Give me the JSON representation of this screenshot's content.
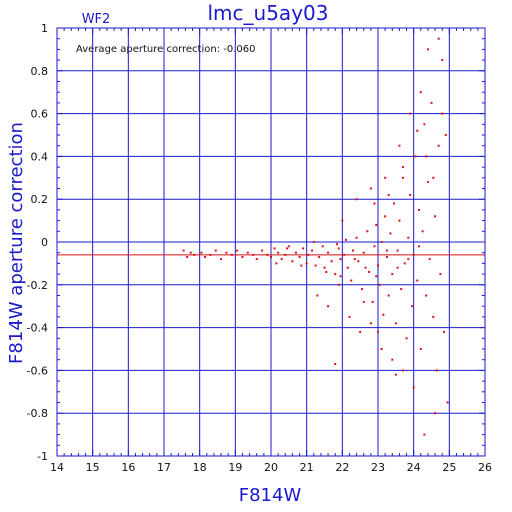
{
  "chart_data": {
    "type": "scatter",
    "title": "lmc_u5ay03",
    "subtitle": "WF2",
    "xlabel": "F814W",
    "ylabel": "F814W aperture correction",
    "annotation": "Average aperture correction:  -0.060",
    "xlim": [
      14,
      26
    ],
    "ylim": [
      -1,
      1
    ],
    "x_ticks": [
      14,
      15,
      16,
      17,
      18,
      19,
      20,
      21,
      22,
      23,
      24,
      25,
      26
    ],
    "y_ticks": [
      -1,
      -0.8,
      -0.6,
      -0.4,
      -0.2,
      0,
      0.2,
      0.4,
      0.6,
      0.8,
      1
    ],
    "x_tick_labels": [
      "14",
      "15",
      "16",
      "17",
      "18",
      "19",
      "20",
      "21",
      "22",
      "23",
      "24",
      "25",
      "26"
    ],
    "y_tick_labels": [
      "-1",
      "-0.8",
      "-0.6",
      "-0.4",
      "-0.2",
      "0",
      "0.2",
      "0.4",
      "0.6",
      "0.8",
      "1"
    ],
    "grid": true,
    "reference_line_y": -0.06,
    "colors": {
      "frame": "#1a1acc",
      "points": "#e01010",
      "reference_line": "#e01010"
    },
    "series": [
      {
        "points": [
          [
            17.55,
            -0.04
          ],
          [
            17.65,
            -0.07
          ],
          [
            17.75,
            -0.05
          ],
          [
            17.85,
            -0.06
          ],
          [
            18.05,
            -0.05
          ],
          [
            18.15,
            -0.07
          ],
          [
            18.3,
            -0.06
          ],
          [
            18.45,
            -0.04
          ],
          [
            18.6,
            -0.08
          ],
          [
            18.75,
            -0.05
          ],
          [
            18.9,
            -0.06
          ],
          [
            19.05,
            -0.04
          ],
          [
            19.2,
            -0.07
          ],
          [
            19.35,
            -0.05
          ],
          [
            19.5,
            -0.06
          ],
          [
            19.6,
            -0.08
          ],
          [
            19.75,
            -0.04
          ],
          [
            19.9,
            -0.06
          ],
          [
            20.0,
            -0.07
          ],
          [
            20.1,
            -0.03
          ],
          [
            20.2,
            -0.05
          ],
          [
            20.3,
            -0.08
          ],
          [
            20.4,
            -0.06
          ],
          [
            20.5,
            -0.02
          ],
          [
            20.6,
            -0.09
          ],
          [
            20.7,
            -0.05
          ],
          [
            20.8,
            -0.07
          ],
          [
            20.9,
            -0.03
          ],
          [
            21.0,
            -0.1
          ],
          [
            21.05,
            -0.06
          ],
          [
            21.15,
            -0.04
          ],
          [
            21.25,
            -0.11
          ],
          [
            21.35,
            -0.07
          ],
          [
            21.45,
            -0.02
          ],
          [
            21.5,
            -0.12
          ],
          [
            21.6,
            -0.05
          ],
          [
            21.7,
            -0.09
          ],
          [
            21.8,
            -0.15
          ],
          [
            21.9,
            -0.03
          ],
          [
            21.95,
            -0.08
          ],
          [
            20.15,
            -0.1
          ],
          [
            20.45,
            -0.03
          ],
          [
            20.85,
            -0.11
          ],
          [
            21.2,
            0.0
          ],
          [
            21.55,
            -0.14
          ],
          [
            21.85,
            -0.01
          ],
          [
            22.05,
            -0.06
          ],
          [
            22.1,
            0.01
          ],
          [
            22.15,
            -0.12
          ],
          [
            22.25,
            -0.18
          ],
          [
            22.3,
            -0.04
          ],
          [
            22.4,
            0.02
          ],
          [
            22.45,
            -0.09
          ],
          [
            22.55,
            -0.22
          ],
          [
            22.6,
            -0.05
          ],
          [
            22.7,
            0.05
          ],
          [
            22.75,
            -0.14
          ],
          [
            22.85,
            -0.28
          ],
          [
            22.9,
            -0.02
          ],
          [
            22.95,
            0.08
          ],
          [
            23.0,
            -0.11
          ],
          [
            23.05,
            -0.2
          ],
          [
            23.1,
            0.0
          ],
          [
            23.15,
            -0.34
          ],
          [
            23.2,
            0.12
          ],
          [
            23.25,
            -0.07
          ],
          [
            23.3,
            -0.25
          ],
          [
            23.35,
            0.04
          ],
          [
            23.4,
            -0.15
          ],
          [
            23.45,
            0.18
          ],
          [
            23.5,
            -0.38
          ],
          [
            23.55,
            -0.04
          ],
          [
            23.6,
            0.1
          ],
          [
            23.65,
            -0.22
          ],
          [
            23.7,
            0.3
          ],
          [
            23.75,
            -0.1
          ],
          [
            23.8,
            -0.45
          ],
          [
            23.85,
            0.02
          ],
          [
            23.9,
            0.22
          ],
          [
            23.95,
            -0.3
          ],
          [
            24.0,
            -0.06
          ],
          [
            24.05,
            0.4
          ],
          [
            24.1,
            -0.18
          ],
          [
            24.15,
            0.15
          ],
          [
            24.2,
            -0.5
          ],
          [
            24.25,
            0.05
          ],
          [
            24.3,
            0.55
          ],
          [
            24.35,
            -0.25
          ],
          [
            24.4,
            0.28
          ],
          [
            24.45,
            -0.08
          ],
          [
            24.5,
            0.65
          ],
          [
            24.55,
            -0.35
          ],
          [
            24.6,
            0.12
          ],
          [
            24.65,
            -0.6
          ],
          [
            24.7,
            0.45
          ],
          [
            24.75,
            -0.15
          ],
          [
            24.8,
            0.85
          ],
          [
            24.85,
            -0.42
          ],
          [
            24.9,
            0.5
          ],
          [
            24.95,
            -0.75
          ],
          [
            21.3,
            -0.25
          ],
          [
            21.6,
            -0.3
          ],
          [
            21.9,
            -0.2
          ],
          [
            22.2,
            -0.35
          ],
          [
            22.5,
            -0.42
          ],
          [
            22.8,
            -0.38
          ],
          [
            23.1,
            -0.5
          ],
          [
            23.4,
            -0.55
          ],
          [
            23.7,
            -0.6
          ],
          [
            24.0,
            -0.68
          ],
          [
            21.8,
            -0.57
          ],
          [
            22.6,
            -0.28
          ],
          [
            23.0,
            -0.42
          ],
          [
            23.5,
            -0.62
          ],
          [
            24.3,
            -0.9
          ],
          [
            24.6,
            -0.8
          ],
          [
            22.0,
            0.1
          ],
          [
            22.4,
            0.2
          ],
          [
            22.8,
            0.25
          ],
          [
            23.2,
            0.3
          ],
          [
            23.6,
            0.45
          ],
          [
            23.9,
            0.6
          ],
          [
            24.2,
            0.7
          ],
          [
            24.4,
            0.9
          ],
          [
            24.7,
            0.95
          ],
          [
            24.8,
            0.6
          ],
          [
            23.7,
            0.35
          ],
          [
            24.1,
            0.52
          ],
          [
            24.55,
            0.3
          ],
          [
            22.9,
            0.18
          ],
          [
            23.3,
            0.22
          ],
          [
            24.35,
            0.4
          ],
          [
            21.95,
            -0.16
          ],
          [
            22.35,
            -0.08
          ],
          [
            22.65,
            -0.12
          ],
          [
            22.95,
            -0.16
          ],
          [
            23.25,
            -0.04
          ],
          [
            23.55,
            -0.12
          ],
          [
            23.85,
            -0.08
          ],
          [
            24.15,
            -0.02
          ]
        ]
      }
    ]
  }
}
